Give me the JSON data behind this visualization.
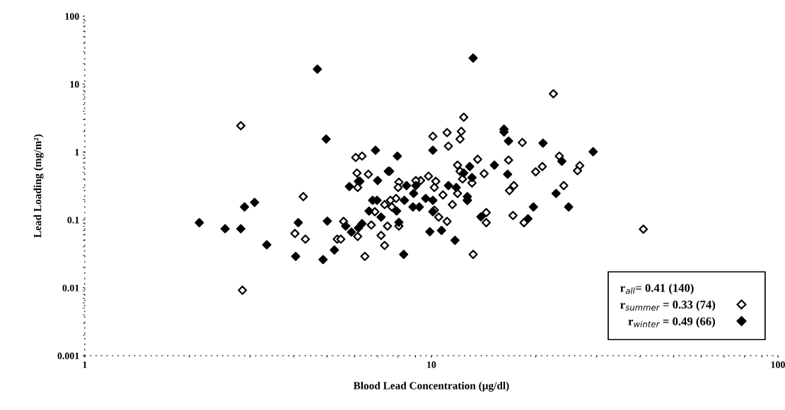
{
  "chart_data": {
    "type": "scatter",
    "xlabel": "Blood Lead Concentration (µg/dl)",
    "ylabel": "Lead Loading (mg/m²)",
    "log": "xy",
    "xlim": [
      1,
      100
    ],
    "ylim": [
      0.001,
      100
    ],
    "xticks": [
      1,
      10,
      100
    ],
    "yticks": [
      0.001,
      0.01,
      0.1,
      1,
      10,
      100
    ],
    "grid": false,
    "legend": "bottom right",
    "legend_title": "r$_{all}$= 0.41 (140)",
    "marker": "diamond",
    "series": [
      {
        "name": "r$_{summer}$ = 0.33 (74)",
        "color": "#ffffff",
        "x": [
          2.82,
          4.27,
          6.05,
          6.31,
          6.1,
          6.58,
          6.16,
          6.13,
          7.33,
          6.87,
          5.58,
          6.71,
          7.47,
          4.04,
          4.33,
          5.35,
          5.48,
          6.13,
          7.16,
          7.33,
          6.43,
          2.85,
          22.5,
          12.4,
          10.1,
          11.1,
          12.2,
          12.1,
          11.2,
          18.3,
          13.6,
          16.7,
          23.4,
          26.8,
          26.4,
          20.9,
          20.0,
          11.9,
          12.1,
          14.2,
          12.3,
          13.1,
          9.81,
          10.3,
          10.2,
          9.31,
          9.02,
          8.06,
          8.02,
          10.8,
          11.9,
          17.3,
          16.8,
          24.1,
          7.91,
          7.62,
          7.69,
          11.5,
          12.7,
          10.2,
          10.5,
          11.1,
          14.4,
          14.4,
          17.2,
          18.5,
          8.06,
          13.2,
          40.9
        ],
        "values": [
          2.44,
          0.22,
          0.83,
          0.87,
          0.49,
          0.47,
          0.37,
          0.3,
          0.168,
          0.132,
          0.095,
          0.084,
          0.081,
          0.063,
          0.052,
          0.052,
          0.052,
          0.057,
          0.059,
          0.042,
          0.029,
          0.0092,
          7.2,
          3.25,
          1.7,
          1.93,
          2.01,
          1.55,
          1.22,
          1.38,
          0.78,
          0.76,
          0.87,
          0.63,
          0.53,
          0.61,
          0.51,
          0.64,
          0.52,
          0.48,
          0.4,
          0.35,
          0.44,
          0.37,
          0.3,
          0.38,
          0.38,
          0.36,
          0.3,
          0.233,
          0.245,
          0.32,
          0.27,
          0.32,
          0.207,
          0.194,
          0.155,
          0.168,
          0.194,
          0.139,
          0.11,
          0.095,
          0.128,
          0.091,
          0.116,
          0.091,
          0.081,
          0.031,
          0.073
        ]
      },
      {
        "name": "r$_{winter}$ = 0.49 (66)",
        "color": "#000000",
        "x": [
          4.69,
          13.2,
          4.97,
          6.9,
          7.51,
          7.0,
          6.22,
          5.8,
          6.77,
          6.97,
          6.61,
          7.16,
          3.09,
          2.89,
          2.14,
          2.54,
          2.82,
          4.13,
          5.01,
          5.66,
          5.88,
          6.31,
          6.16,
          3.35,
          4.06,
          4.87,
          5.25,
          7.98,
          10.1,
          16.2,
          16.2,
          16.7,
          21.0,
          29.3,
          23.8,
          15.2,
          12.9,
          12.4,
          13.1,
          16.6,
          7.58,
          8.48,
          9.02,
          8.89,
          11.2,
          11.8,
          12.7,
          12.7,
          9.63,
          10.1,
          8.36,
          22.9,
          19.7,
          24.9,
          8.85,
          9.23,
          10.1,
          7.94,
          8.06,
          13.9,
          19.0,
          9.9,
          10.7,
          11.7,
          8.32
        ],
        "values": [
          16.6,
          24.2,
          1.55,
          1.06,
          0.52,
          0.38,
          0.37,
          0.31,
          0.194,
          0.194,
          0.135,
          0.11,
          0.181,
          0.155,
          0.091,
          0.074,
          0.074,
          0.091,
          0.096,
          0.081,
          0.066,
          0.088,
          0.076,
          0.043,
          0.029,
          0.026,
          0.036,
          0.87,
          1.06,
          2.17,
          1.97,
          1.45,
          1.35,
          1.01,
          0.73,
          0.64,
          0.61,
          0.49,
          0.42,
          0.47,
          0.52,
          0.32,
          0.32,
          0.245,
          0.32,
          0.3,
          0.22,
          0.194,
          0.207,
          0.194,
          0.194,
          0.245,
          0.155,
          0.155,
          0.155,
          0.155,
          0.132,
          0.135,
          0.092,
          0.111,
          0.104,
          0.067,
          0.07,
          0.05,
          0.031
        ]
      }
    ]
  }
}
